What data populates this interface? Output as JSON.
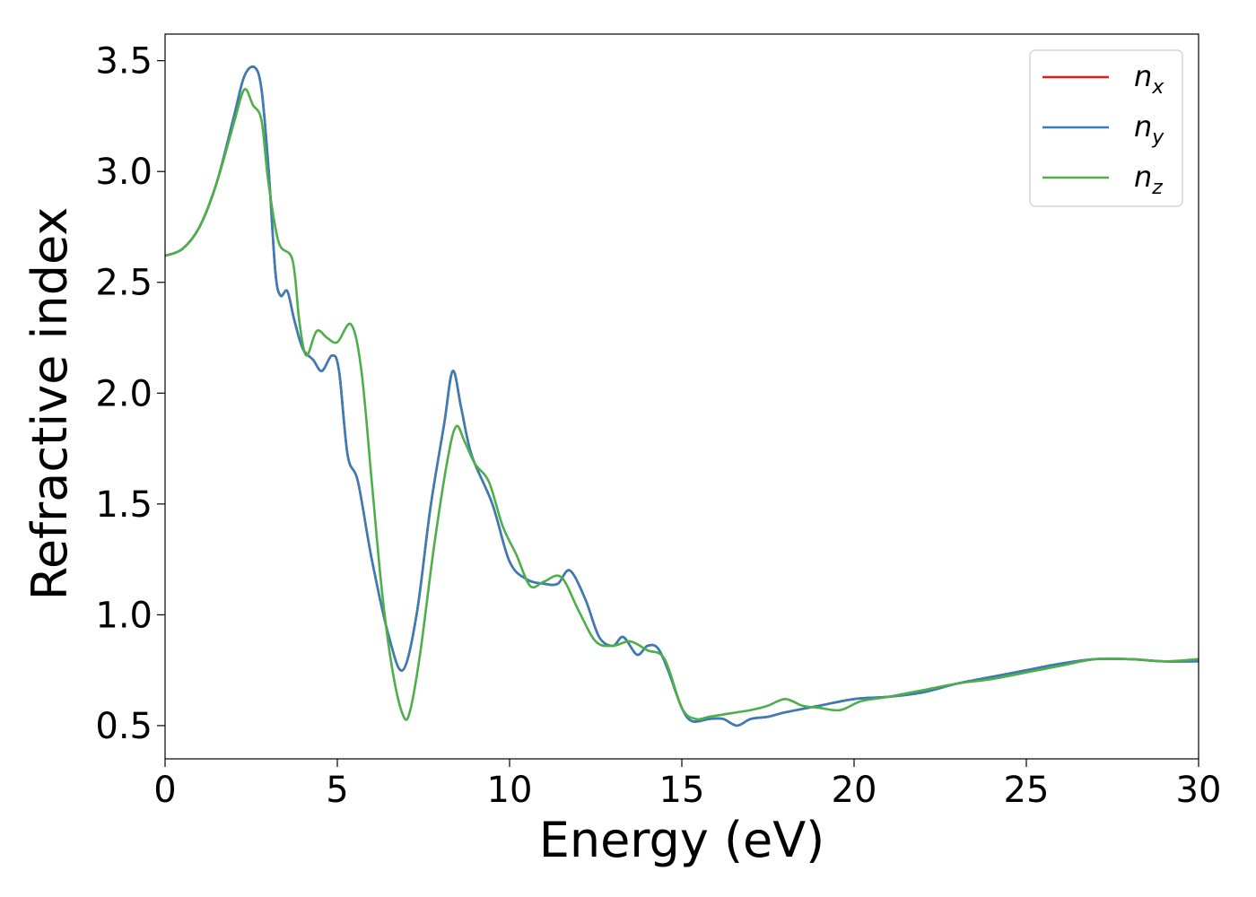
{
  "chart_data": {
    "type": "line",
    "title": "",
    "xlabel": "Energy (eV)",
    "ylabel": "Refractive index",
    "xlim": [
      0,
      30
    ],
    "ylim": [
      0.35,
      3.62
    ],
    "xticks": [
      0,
      5,
      10,
      15,
      20,
      25,
      30
    ],
    "xtick_labels": [
      "0",
      "5",
      "10",
      "15",
      "20",
      "25",
      "30"
    ],
    "yticks": [
      0.5,
      1.0,
      1.5,
      2.0,
      2.5,
      3.0,
      3.5
    ],
    "ytick_labels": [
      "0.5",
      "1.0",
      "1.5",
      "2.0",
      "2.5",
      "3.0",
      "3.5"
    ],
    "grid": false,
    "legend_position": "top-right",
    "series": [
      {
        "name": "n",
        "subscript": "x",
        "color": "#e41a1c",
        "x": [
          0,
          0.5,
          1.0,
          1.5,
          2.0,
          2.3,
          2.6,
          2.8,
          3.0,
          3.2,
          3.35,
          3.55,
          3.75,
          4.0,
          4.3,
          4.55,
          4.85,
          5.05,
          5.3,
          5.6,
          6.0,
          6.5,
          6.9,
          7.3,
          7.7,
          8.1,
          8.35,
          8.6,
          8.9,
          9.5,
          10.0,
          10.5,
          11.0,
          11.4,
          11.75,
          12.2,
          12.6,
          13.0,
          13.3,
          13.7,
          14.0,
          14.3,
          14.6,
          15.0,
          15.3,
          15.8,
          16.2,
          16.6,
          17.0,
          17.5,
          18.0,
          19.0,
          20.0,
          21.0,
          22.0,
          23.0,
          24.0,
          25.0,
          26.0,
          27.0,
          28.0,
          29.0,
          30.0
        ],
        "y": [
          2.62,
          2.65,
          2.75,
          2.95,
          3.25,
          3.43,
          3.47,
          3.37,
          3.02,
          2.55,
          2.44,
          2.46,
          2.33,
          2.2,
          2.15,
          2.1,
          2.17,
          2.1,
          1.72,
          1.6,
          1.25,
          0.9,
          0.75,
          1.0,
          1.48,
          1.86,
          2.1,
          1.93,
          1.72,
          1.5,
          1.24,
          1.16,
          1.14,
          1.14,
          1.2,
          1.07,
          0.9,
          0.86,
          0.9,
          0.82,
          0.86,
          0.85,
          0.75,
          0.58,
          0.52,
          0.53,
          0.53,
          0.5,
          0.53,
          0.54,
          0.56,
          0.59,
          0.62,
          0.63,
          0.65,
          0.69,
          0.72,
          0.75,
          0.78,
          0.8,
          0.8,
          0.79,
          0.79
        ]
      },
      {
        "name": "n",
        "subscript": "y",
        "color": "#377eb8",
        "x": [
          0,
          0.5,
          1.0,
          1.5,
          2.0,
          2.3,
          2.6,
          2.8,
          3.0,
          3.2,
          3.35,
          3.55,
          3.75,
          4.0,
          4.3,
          4.55,
          4.85,
          5.05,
          5.3,
          5.6,
          6.0,
          6.5,
          6.9,
          7.3,
          7.7,
          8.1,
          8.35,
          8.6,
          8.9,
          9.5,
          10.0,
          10.5,
          11.0,
          11.4,
          11.75,
          12.2,
          12.6,
          13.0,
          13.3,
          13.7,
          14.0,
          14.3,
          14.6,
          15.0,
          15.3,
          15.8,
          16.2,
          16.6,
          17.0,
          17.5,
          18.0,
          19.0,
          20.0,
          21.0,
          22.0,
          23.0,
          24.0,
          25.0,
          26.0,
          27.0,
          28.0,
          29.0,
          30.0
        ],
        "y": [
          2.62,
          2.65,
          2.75,
          2.95,
          3.25,
          3.43,
          3.47,
          3.37,
          3.02,
          2.55,
          2.44,
          2.46,
          2.33,
          2.2,
          2.15,
          2.1,
          2.17,
          2.1,
          1.72,
          1.6,
          1.25,
          0.9,
          0.75,
          1.0,
          1.48,
          1.86,
          2.1,
          1.93,
          1.72,
          1.5,
          1.24,
          1.16,
          1.14,
          1.14,
          1.2,
          1.07,
          0.9,
          0.86,
          0.9,
          0.82,
          0.86,
          0.85,
          0.75,
          0.58,
          0.52,
          0.53,
          0.53,
          0.5,
          0.53,
          0.54,
          0.56,
          0.59,
          0.62,
          0.63,
          0.65,
          0.69,
          0.72,
          0.75,
          0.78,
          0.8,
          0.8,
          0.79,
          0.79
        ]
      },
      {
        "name": "n",
        "subscript": "z",
        "color": "#4daf4a",
        "x": [
          0,
          0.5,
          1.0,
          1.5,
          2.0,
          2.3,
          2.55,
          2.8,
          3.0,
          3.3,
          3.7,
          3.9,
          4.1,
          4.4,
          4.7,
          5.0,
          5.4,
          5.7,
          6.0,
          6.3,
          6.6,
          6.9,
          7.1,
          7.4,
          7.8,
          8.2,
          8.45,
          8.7,
          9.0,
          9.4,
          9.8,
          10.2,
          10.6,
          11.0,
          11.5,
          12.0,
          12.5,
          13.0,
          13.5,
          14.0,
          14.5,
          15.0,
          15.4,
          15.8,
          16.2,
          16.6,
          17.0,
          17.5,
          18.0,
          18.5,
          19.0,
          19.6,
          20.2,
          21.0,
          22.0,
          23.0,
          24.0,
          25.0,
          26.0,
          27.0,
          28.0,
          29.0,
          30.0
        ],
        "y": [
          2.62,
          2.65,
          2.75,
          2.95,
          3.22,
          3.37,
          3.3,
          3.23,
          2.95,
          2.68,
          2.6,
          2.32,
          2.17,
          2.28,
          2.25,
          2.23,
          2.31,
          2.1,
          1.6,
          1.1,
          0.75,
          0.55,
          0.56,
          0.82,
          1.3,
          1.7,
          1.85,
          1.78,
          1.68,
          1.6,
          1.4,
          1.27,
          1.13,
          1.15,
          1.17,
          1.02,
          0.88,
          0.86,
          0.88,
          0.84,
          0.8,
          0.58,
          0.53,
          0.54,
          0.55,
          0.56,
          0.57,
          0.59,
          0.62,
          0.59,
          0.58,
          0.57,
          0.61,
          0.63,
          0.66,
          0.69,
          0.71,
          0.74,
          0.77,
          0.8,
          0.8,
          0.79,
          0.8
        ]
      }
    ]
  }
}
